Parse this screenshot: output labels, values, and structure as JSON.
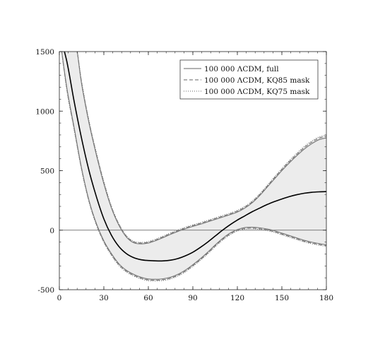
{
  "chart_data": {
    "type": "line",
    "title": "",
    "xlabel": "",
    "ylabel": "",
    "xlim": [
      0,
      180
    ],
    "ylim": [
      -500,
      1500
    ],
    "x_ticks": [
      0,
      30,
      60,
      90,
      120,
      150,
      180
    ],
    "y_ticks": [
      -500,
      0,
      500,
      1000,
      1500
    ],
    "x_tick_labels": [
      "0",
      "30",
      "60",
      "90",
      "120",
      "150",
      "180"
    ],
    "y_tick_labels": [
      "-500",
      "0",
      "500",
      "1000",
      "1500"
    ],
    "grid": false,
    "zero_line": true,
    "legend_position": "top-right",
    "band_fill_color": "#ececec",
    "band_edge_color": "#777777",
    "mean_line_color": "#000000",
    "x": [
      0,
      5,
      10,
      15,
      20,
      25,
      30,
      35,
      40,
      45,
      50,
      55,
      60,
      65,
      70,
      75,
      80,
      85,
      90,
      95,
      100,
      105,
      110,
      115,
      120,
      125,
      130,
      135,
      140,
      145,
      150,
      155,
      160,
      165,
      170,
      175,
      180
    ],
    "series": [
      {
        "name": "100 000 ΛCDM, full",
        "style": "solid",
        "mean": [
          1650,
          1420,
          1080,
          770,
          500,
          280,
          95,
          -40,
          -135,
          -195,
          -230,
          -248,
          -255,
          -258,
          -258,
          -252,
          -238,
          -215,
          -185,
          -145,
          -100,
          -50,
          0,
          45,
          85,
          120,
          155,
          185,
          215,
          240,
          262,
          282,
          298,
          310,
          318,
          322,
          324
        ],
        "upper": [
          1650,
          1650,
          1650,
          1230,
          900,
          630,
          390,
          190,
          45,
          -55,
          -105,
          -115,
          -108,
          -88,
          -62,
          -35,
          -10,
          12,
          32,
          50,
          70,
          90,
          110,
          130,
          152,
          185,
          230,
          290,
          360,
          430,
          500,
          565,
          625,
          680,
          725,
          760,
          775
        ],
        "lower": [
          1650,
          1200,
          860,
          520,
          250,
          55,
          -90,
          -195,
          -280,
          -335,
          -370,
          -395,
          -410,
          -412,
          -408,
          -395,
          -370,
          -335,
          -290,
          -240,
          -185,
          -125,
          -70,
          -25,
          5,
          22,
          25,
          20,
          10,
          -5,
          -25,
          -45,
          -65,
          -85,
          -100,
          -112,
          -122
        ]
      },
      {
        "name": "100 000 ΛCDM, KQ85 mask",
        "style": "dashed",
        "mean": [
          1650,
          1420,
          1080,
          770,
          500,
          280,
          95,
          -40,
          -135,
          -195,
          -230,
          -248,
          -255,
          -258,
          -258,
          -252,
          -238,
          -215,
          -185,
          -145,
          -100,
          -50,
          0,
          45,
          85,
          120,
          155,
          185,
          215,
          240,
          262,
          282,
          298,
          310,
          318,
          322,
          324
        ],
        "upper": [
          1650,
          1650,
          1650,
          1240,
          910,
          640,
          400,
          198,
          52,
          -48,
          -98,
          -108,
          -101,
          -81,
          -55,
          -28,
          -3,
          19,
          39,
          57,
          77,
          97,
          117,
          137,
          160,
          193,
          238,
          298,
          368,
          440,
          510,
          576,
          636,
          692,
          738,
          773,
          788
        ],
        "lower": [
          1650,
          1190,
          850,
          512,
          243,
          48,
          -97,
          -203,
          -288,
          -343,
          -378,
          -403,
          -418,
          -420,
          -416,
          -403,
          -378,
          -343,
          -298,
          -248,
          -193,
          -133,
          -78,
          -33,
          -2,
          14,
          17,
          12,
          2,
          -13,
          -33,
          -53,
          -73,
          -93,
          -108,
          -120,
          -130
        ]
      },
      {
        "name": "100 000 ΛCDM, KQ75 mask",
        "style": "dotted",
        "mean": [
          1650,
          1420,
          1080,
          770,
          500,
          280,
          95,
          -40,
          -135,
          -195,
          -230,
          -248,
          -255,
          -258,
          -258,
          -252,
          -238,
          -215,
          -185,
          -145,
          -100,
          -50,
          0,
          45,
          85,
          120,
          155,
          185,
          215,
          240,
          262,
          282,
          298,
          310,
          318,
          322,
          324
        ],
        "upper": [
          1650,
          1650,
          1650,
          1250,
          920,
          650,
          410,
          205,
          58,
          -42,
          -92,
          -102,
          -95,
          -75,
          -49,
          -22,
          3,
          25,
          45,
          63,
          83,
          103,
          123,
          143,
          167,
          200,
          245,
          305,
          375,
          448,
          518,
          585,
          645,
          702,
          748,
          783,
          798
        ],
        "lower": [
          1650,
          1180,
          842,
          505,
          237,
          42,
          -103,
          -210,
          -295,
          -350,
          -385,
          -410,
          -425,
          -427,
          -423,
          -410,
          -385,
          -350,
          -305,
          -255,
          -200,
          -140,
          -85,
          -40,
          -8,
          8,
          11,
          6,
          -4,
          -19,
          -39,
          -59,
          -79,
          -99,
          -114,
          -126,
          -136
        ]
      }
    ]
  }
}
